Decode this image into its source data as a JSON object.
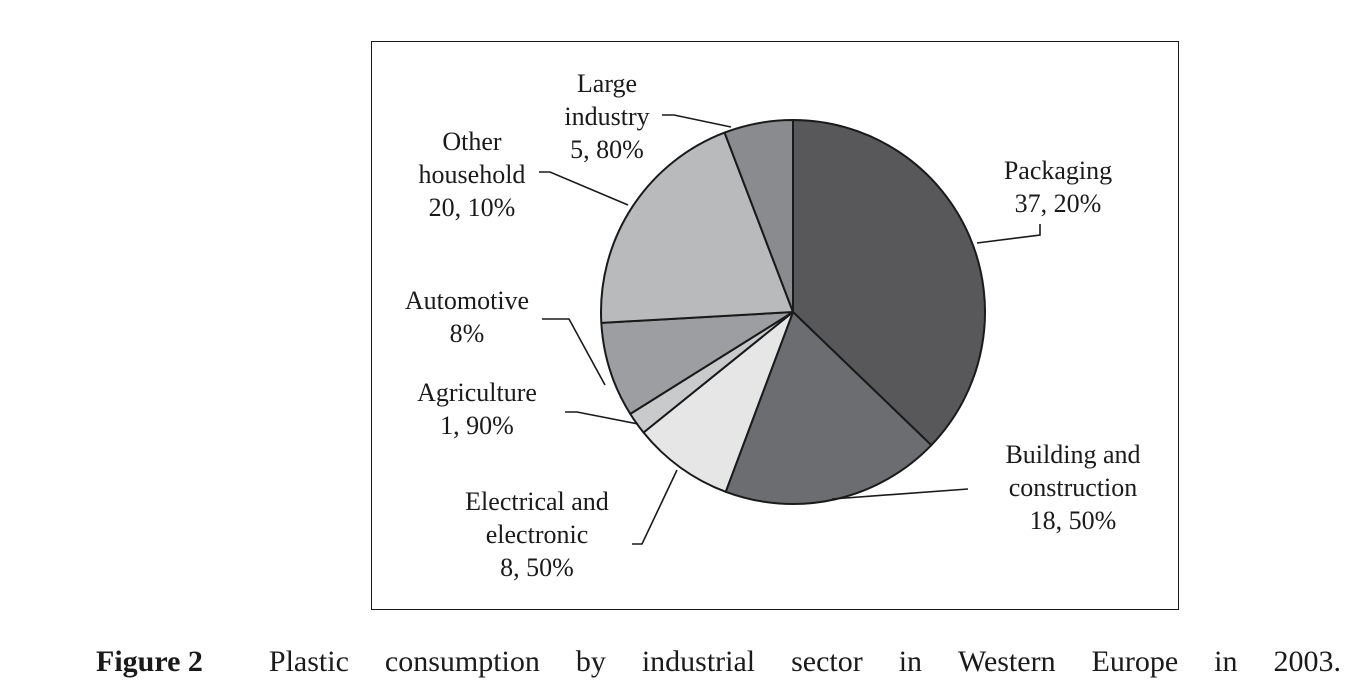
{
  "chart_data": {
    "type": "pie",
    "slices": [
      {
        "name": "Packaging",
        "line1": "Packaging",
        "line2": "",
        "value_label": "37, 20%",
        "value": 37.2,
        "color": "#58585b"
      },
      {
        "name": "Building and construction",
        "line1": "Building and",
        "line2": "construction",
        "value_label": "18, 50%",
        "value": 18.5,
        "color": "#6c6d70"
      },
      {
        "name": "Electrical and electronic",
        "line1": "Electrical and",
        "line2": "electronic",
        "value_label": "8, 50%",
        "value": 8.5,
        "color": "#e6e6e7"
      },
      {
        "name": "Agriculture",
        "line1": "Agriculture",
        "line2": "",
        "value_label": "1, 90%",
        "value": 1.9,
        "color": "#c9cacc"
      },
      {
        "name": "Automotive",
        "line1": "Automotive",
        "line2": "",
        "value_label": "8%",
        "value": 8.0,
        "color": "#9d9ea1"
      },
      {
        "name": "Other household",
        "line1": "Other",
        "line2": "household",
        "value_label": "20, 10%",
        "value": 20.1,
        "color": "#b9babc"
      },
      {
        "name": "Large industry",
        "line1": "Large",
        "line2": "industry",
        "value_label": "5, 80%",
        "value": 5.8,
        "color": "#8a8b8e"
      }
    ]
  },
  "caption": {
    "figure_label": "Figure 2",
    "words": [
      "Plastic",
      "consumption",
      "by",
      "industrial",
      "sector",
      "in",
      "Western",
      "Europe",
      "in",
      "2003."
    ]
  }
}
